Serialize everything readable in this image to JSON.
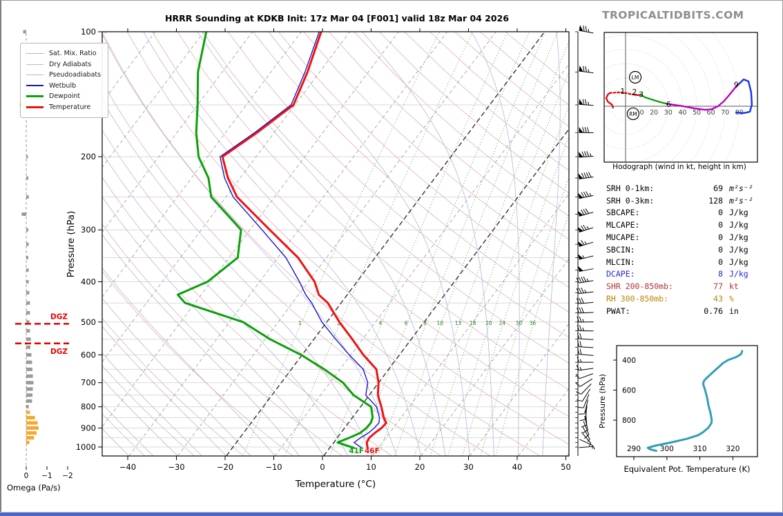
{
  "watermark": "TROPICALTIDBITS.COM",
  "footer_color": "#4a66c8",
  "skewt_ui": {
    "surface_dewpoint_label": "41F",
    "surface_temperature_label": "46F",
    "legend": [
      {
        "label": "Sat. Mix. Ratio",
        "color": "#3e8e3e",
        "style": "dotted",
        "width": 1
      },
      {
        "label": "Dry Adiabats",
        "color": "#e2b0b0",
        "style": "solid",
        "width": 1
      },
      {
        "label": "Pseudoadiabats",
        "color": "#b4b4dd",
        "style": "solid",
        "width": 1
      },
      {
        "label": "Wetbulb",
        "color": "#1414cc",
        "style": "solid",
        "width": 2
      },
      {
        "label": "Dewpoint",
        "color": "#0aa00a",
        "style": "solid",
        "width": 3
      },
      {
        "label": "Temperature",
        "color": "#ee1111",
        "style": "solid",
        "width": 3
      }
    ],
    "mixratio_label_values": [
      1,
      2,
      4,
      6,
      8,
      10,
      13,
      16,
      20,
      24,
      30,
      36
    ]
  },
  "indices": {
    "rows": [
      {
        "label": "SRH 0-1km:",
        "value": "69",
        "unit": "m²s⁻²",
        "color": "#000000",
        "italic": true
      },
      {
        "label": "SRH 0-3km:",
        "value": "128",
        "unit": "m²s⁻²",
        "color": "#000000",
        "italic": true
      },
      {
        "label": "SBCAPE:",
        "value": "0",
        "unit": "J/kg",
        "color": "#000000"
      },
      {
        "label": "MLCAPE:",
        "value": "0",
        "unit": "J/kg",
        "color": "#000000"
      },
      {
        "label": "MUCAPE:",
        "value": "0",
        "unit": "J/kg",
        "color": "#000000"
      },
      {
        "label": "SBCIN:",
        "value": "0",
        "unit": "J/kg",
        "color": "#000000"
      },
      {
        "label": "MLCIN:",
        "value": "0",
        "unit": "J/kg",
        "color": "#000000"
      },
      {
        "label": "DCAPE:",
        "value": "8",
        "unit": "J/kg",
        "color": "#2727d8"
      },
      {
        "label": "SHR 200-850mb:",
        "value": "77",
        "unit": "kt",
        "color": "#b03434"
      },
      {
        "label": "RH 300-850mb:",
        "value": "43",
        "unit": "%",
        "color": "#b8860b"
      },
      {
        "label": "PWAT:",
        "value": "0.76",
        "unit": "in",
        "color": "#000000"
      }
    ]
  },
  "wind_barbs": {
    "pressure_hPa": [
      100,
      125,
      150,
      175,
      200,
      225,
      250,
      275,
      300,
      325,
      350,
      375,
      400,
      425,
      450,
      475,
      500,
      525,
      550,
      575,
      600,
      625,
      650,
      675,
      700,
      725,
      750,
      775,
      800,
      825,
      850,
      875,
      900,
      925,
      950,
      975,
      1000
    ],
    "speed_kt": [
      75,
      76,
      78,
      80,
      85,
      90,
      88,
      82,
      75,
      65,
      58,
      52,
      45,
      38,
      32,
      30,
      28,
      26,
      24,
      22,
      20,
      17,
      15,
      13,
      12,
      11,
      10,
      10,
      10,
      10,
      10,
      10,
      10,
      9,
      8,
      9,
      9
    ],
    "dir_from_deg": [
      280,
      277,
      274,
      271,
      266,
      262,
      258,
      254,
      252,
      253,
      256,
      259,
      261,
      263,
      265,
      267,
      269,
      271,
      273,
      274,
      275,
      270,
      262,
      250,
      237,
      224,
      212,
      202,
      194,
      186,
      176,
      167,
      158,
      150,
      140,
      115,
      85
    ]
  },
  "chart_data": [
    {
      "type": "line",
      "id": "skewt",
      "title": "HRRR Sounding at KDKB Init: 17z Mar 04 [F001] valid 18z Mar 04 2026",
      "xlabel": "Temperature (°C)",
      "ylabel": "Pressure (hPa)",
      "xticks": [
        -40,
        -30,
        -20,
        -10,
        0,
        10,
        20,
        30,
        40,
        50
      ],
      "yticks": [
        100,
        200,
        300,
        400,
        500,
        600,
        700,
        800,
        900,
        1000
      ],
      "xlim": [
        -40,
        50
      ],
      "p_range": [
        100,
        1050
      ],
      "pressure_hPa": [
        1005,
        975,
        950,
        925,
        900,
        875,
        850,
        800,
        750,
        700,
        650,
        600,
        550,
        500,
        450,
        430,
        400,
        350,
        300,
        250,
        225,
        200,
        175,
        150,
        125,
        100
      ],
      "series": [
        {
          "name": "Temperature",
          "color": "#ee1111",
          "values_C": [
            7.8,
            6.8,
            6.6,
            7.0,
            7.6,
            7.8,
            6.5,
            4.3,
            1.8,
            0.0,
            -2.5,
            -7.4,
            -12.1,
            -17.4,
            -22.7,
            -25.8,
            -28.7,
            -35.8,
            -45.9,
            -57.7,
            -62.5,
            -66.9,
            -63.5,
            -60.3,
            -62.5,
            -65.9
          ]
        },
        {
          "name": "Dewpoint",
          "color": "#0aa00a",
          "values_C": [
            5.0,
            0.8,
            2.5,
            4.0,
            4.5,
            4.6,
            4.2,
            2.2,
            -3.2,
            -7.3,
            -13.2,
            -20.2,
            -29.0,
            -37.2,
            -52.0,
            -54.8,
            -50.7,
            -48.2,
            -51.8,
            -63.0,
            -66.5,
            -71.8,
            -76.0,
            -80.0,
            -85.0,
            -89.5
          ]
        },
        {
          "name": "Wetbulb",
          "color": "#1414cc",
          "values_C": [
            6.6,
            4.2,
            4.8,
            5.7,
            6.1,
            6.3,
            5.6,
            3.3,
            -0.7,
            -2.2,
            -5.2,
            -10.3,
            -15.5,
            -21.0,
            -26.0,
            -28.5,
            -31.8,
            -38.3,
            -47.5,
            -58.5,
            -63.2,
            -67.4,
            -64.0,
            -60.8,
            -63.0,
            -66.3
          ]
        }
      ]
    },
    {
      "type": "line",
      "id": "hodograph",
      "caption": "Hodograph (wind in kt, height in km)",
      "ring_step_kt": 10,
      "ring_labels": [
        10,
        20,
        30,
        40,
        50,
        60,
        70,
        80
      ],
      "segments": [
        {
          "color": "#dd1111",
          "style": "solid",
          "points": [
            [
              -8.8,
              -1.0
            ],
            [
              -9.5,
              1.0
            ],
            [
              -12.5,
              3.2
            ],
            [
              -13.6,
              5.8
            ],
            [
              -12.5,
              8.2
            ],
            [
              -11.0,
              9.3
            ]
          ]
        },
        {
          "color": "#dd1111",
          "style": "dotted",
          "points": [
            [
              -11.0,
              9.3
            ],
            [
              -6.0,
              9.7
            ],
            [
              -1.9,
              9.7
            ],
            [
              2.5,
              8.8
            ],
            [
              4.9,
              8.3
            ]
          ]
        },
        {
          "color": "#dd1111",
          "style": "solid",
          "points": [
            [
              4.9,
              8.3
            ],
            [
              8.7,
              7.8
            ],
            [
              10.7,
              8.0
            ]
          ]
        },
        {
          "color": "#0aa00a",
          "style": "solid",
          "points": [
            [
              10.7,
              8.0
            ],
            [
              13.6,
              6.3
            ],
            [
              19.4,
              4.4
            ],
            [
              24.3,
              2.9
            ],
            [
              29.1,
              1.7
            ]
          ]
        },
        {
          "color": "#bb00bb",
          "style": "solid",
          "points": [
            [
              29.1,
              1.7
            ],
            [
              38.8,
              0.3
            ],
            [
              48.5,
              -1.5
            ],
            [
              56.0,
              -2.5
            ],
            [
              60.2,
              -2.2
            ],
            [
              65.0,
              0.0
            ],
            [
              69.0,
              3.4
            ],
            [
              72.8,
              7.8
            ],
            [
              76.7,
              12.6
            ],
            [
              79.5,
              15.5
            ]
          ]
        },
        {
          "color": "#1133ee",
          "style": "solid",
          "points": [
            [
              79.5,
              15.5
            ],
            [
              83.0,
              18.9
            ],
            [
              86.4,
              17.5
            ],
            [
              88.3,
              9.7
            ],
            [
              88.8,
              1.0
            ],
            [
              87.4,
              -3.9
            ],
            [
              83.0,
              -4.8
            ],
            [
              77.7,
              -4.4
            ]
          ]
        }
      ],
      "height_labels": [
        {
          "text": "1",
          "u": -2.0,
          "v": 10.6
        },
        {
          "text": "2",
          "u": 6.3,
          "v": 10.2
        },
        {
          "text": "3",
          "u": 11.0,
          "v": 8.6
        },
        {
          "text": "6",
          "u": 30.3,
          "v": 1.5
        },
        {
          "text": "9",
          "u": 77.8,
          "v": 15.4
        }
      ],
      "markers": [
        {
          "text": "LM",
          "u": 6.8,
          "v": 20.4
        },
        {
          "text": "RM",
          "u": 5.3,
          "v": -5.3
        }
      ]
    },
    {
      "type": "bar",
      "id": "omega",
      "xlabel": "Omega (Pa/s)",
      "xticks": [
        0,
        -1,
        -2
      ],
      "dgz": {
        "label": "DGZ",
        "levels_hPa": [
          505,
          563
        ]
      },
      "levels_hPa": [
        100,
        150,
        200,
        225,
        250,
        275,
        300,
        325,
        350,
        375,
        400,
        425,
        450,
        475,
        500,
        525,
        550,
        575,
        600,
        625,
        650,
        675,
        700,
        725,
        750,
        775,
        800,
        825,
        850,
        875,
        900,
        925,
        950,
        975
      ],
      "values_Pa_s": [
        0.15,
        0.32,
        -0.08,
        -0.1,
        -0.12,
        0.22,
        -0.1,
        -0.12,
        -0.1,
        -0.12,
        -0.12,
        -0.15,
        -0.18,
        -0.18,
        -0.15,
        -0.18,
        -0.22,
        -0.2,
        -0.25,
        -0.28,
        -0.3,
        -0.32,
        -0.35,
        -0.32,
        -0.3,
        -0.28,
        -0.12,
        -0.18,
        -0.42,
        -0.55,
        -0.6,
        -0.5,
        -0.38,
        -0.15
      ],
      "bar_colors": [
        "gray",
        "gold",
        "gray",
        "gray",
        "gray",
        "gray",
        "gray",
        "gray",
        "gray",
        "gray",
        "gray",
        "gray",
        "gray",
        "gray",
        "gray",
        "gray",
        "gray",
        "gray",
        "gray",
        "gray",
        "gray",
        "gray",
        "gray",
        "gray",
        "gray",
        "gray",
        "gray",
        "orange",
        "orange",
        "orange",
        "orange",
        "orange",
        "orange",
        "orange"
      ]
    },
    {
      "type": "line",
      "id": "theta_e",
      "xlabel": "Equivalent Pot. Temperature (K)",
      "ylabel": "Pressure (hPa)",
      "xticks": [
        290,
        300,
        310,
        320
      ],
      "yticks": [
        400,
        600,
        800
      ],
      "color": "#2f9eb5",
      "points_K_hPa": [
        [
          322.8,
          340
        ],
        [
          322.5,
          360
        ],
        [
          321.0,
          380
        ],
        [
          318.5,
          400
        ],
        [
          317.0,
          420
        ],
        [
          315.5,
          450
        ],
        [
          314.0,
          480
        ],
        [
          313.0,
          500
        ],
        [
          312.0,
          520
        ],
        [
          311.2,
          540
        ],
        [
          311.0,
          560
        ],
        [
          311.3,
          580
        ],
        [
          311.6,
          600
        ],
        [
          312.2,
          650
        ],
        [
          312.6,
          700
        ],
        [
          313.2,
          750
        ],
        [
          313.6,
          800
        ],
        [
          313.5,
          820
        ],
        [
          312.6,
          850
        ],
        [
          311.0,
          880
        ],
        [
          309.5,
          900
        ],
        [
          306.0,
          925
        ],
        [
          301.0,
          950
        ],
        [
          296.5,
          970
        ],
        [
          294.2,
          985
        ],
        [
          295.0,
          995
        ],
        [
          296.8,
          1005
        ]
      ]
    }
  ]
}
